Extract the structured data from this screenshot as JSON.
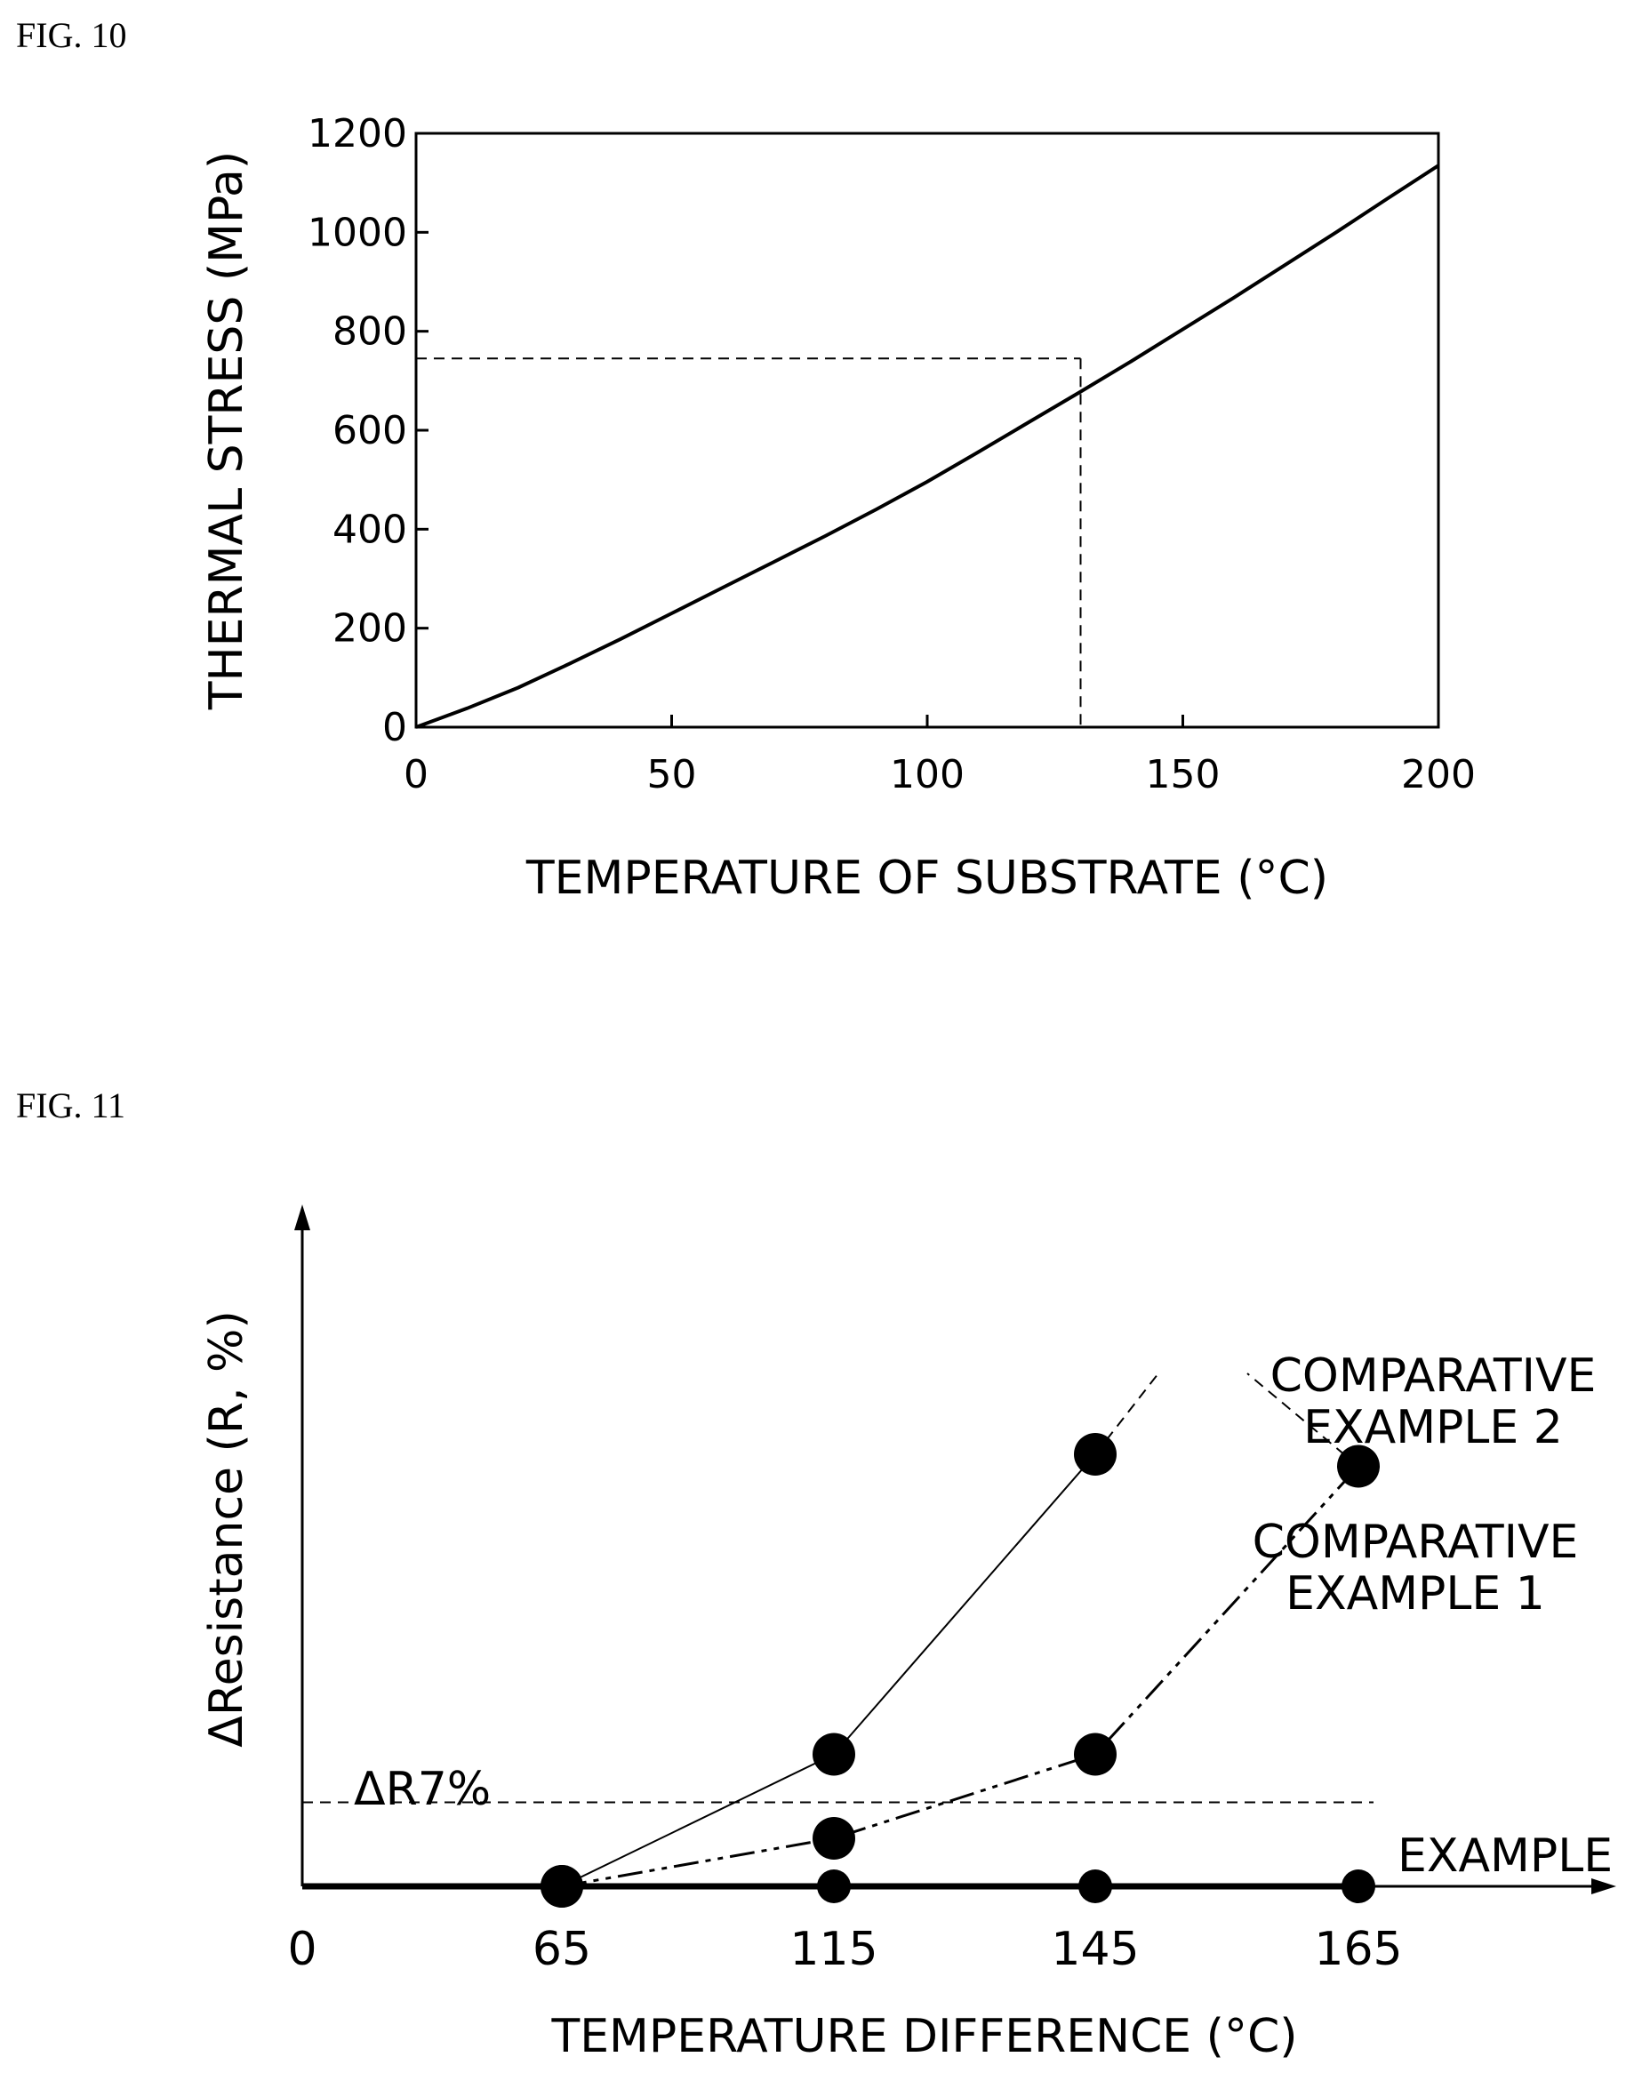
{
  "fig10_label": "FIG. 10",
  "fig11_label": "FIG. 11",
  "chart_data": [
    {
      "type": "line",
      "xlabel": "TEMPERATURE OF SUBSTRATE (°C)",
      "ylabel": "THERMAL STRESS (MPa)",
      "xlim": [
        0,
        200
      ],
      "ylim": [
        0,
        1200
      ],
      "xticks": [
        "0",
        "50",
        "100",
        "150",
        "200"
      ],
      "yticks": [
        "0",
        "200",
        "400",
        "600",
        "800",
        "1000",
        "1200"
      ],
      "series": [
        {
          "x": [
            0,
            10,
            20,
            30,
            40,
            50,
            60,
            70,
            80,
            90,
            100,
            110,
            120,
            130,
            140,
            150,
            160,
            170,
            180,
            190,
            200
          ],
          "y": [
            0,
            38,
            80,
            128,
            178,
            230,
            282,
            334,
            386,
            440,
            496,
            556,
            617,
            678,
            740,
            804,
            868,
            934,
            1000,
            1068,
            1135
          ]
        }
      ],
      "reference_point": {
        "x": 130,
        "y": 745
      },
      "grid": false,
      "color": "#000000"
    },
    {
      "type": "line",
      "xlabel": "TEMPERATURE DIFFERENCE  (°C)",
      "ylabel": "ΔResistance (R, %)",
      "xticks": [
        "0",
        "65",
        "115",
        "145",
        "165"
      ],
      "threshold_label": "ΔR7%",
      "threshold_value": 7,
      "series": [
        {
          "name": "EXAMPLE",
          "x": [
            65,
            115,
            145,
            165
          ],
          "y": [
            0,
            0,
            0,
            0
          ]
        },
        {
          "name": "COMPARATIVE EXAMPLE 1",
          "x": [
            65,
            115,
            145,
            165
          ],
          "y": [
            0,
            4,
            11,
            35
          ]
        },
        {
          "name": "COMPARATIVE EXAMPLE 2",
          "x": [
            65,
            115,
            145
          ],
          "y": [
            0,
            11,
            36
          ]
        }
      ],
      "grid": false,
      "color": "#000000"
    }
  ]
}
